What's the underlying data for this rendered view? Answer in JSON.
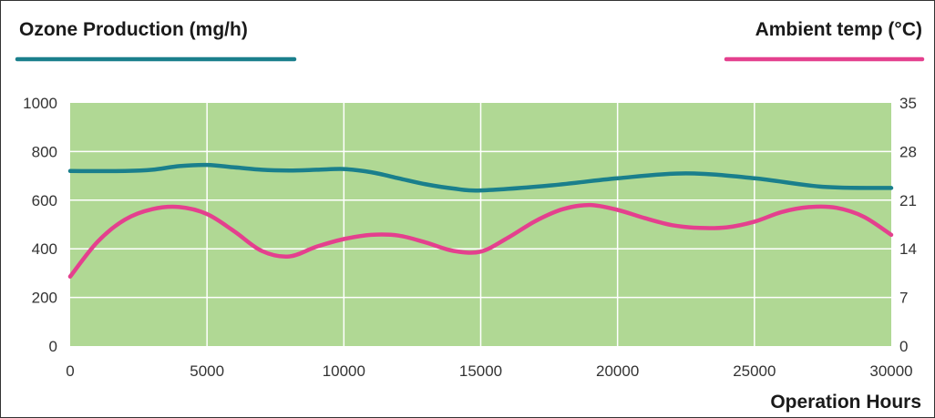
{
  "chart_data": {
    "type": "line",
    "xlabel": "Operation Hours",
    "x_ticks": [
      "0",
      "5000",
      "10000",
      "15000",
      "20000",
      "25000",
      "30000"
    ],
    "xlim": [
      0,
      30000
    ],
    "y_left_label": "Ozone Production (mg/h)",
    "y_left_ticks": [
      "0",
      "200",
      "400",
      "600",
      "800",
      "1000"
    ],
    "y_left_lim": [
      0,
      1000
    ],
    "y_right_label": "Ambient temp (°C)",
    "y_right_ticks": [
      "0",
      "7",
      "14",
      "21",
      "28",
      "35"
    ],
    "y_right_lim": [
      0,
      35
    ],
    "grid": true,
    "plot_background": "#b0d894",
    "series": [
      {
        "name": "Ozone Production (mg/h)",
        "axis": "left",
        "color": "#1a7f8c",
        "x": [
          0,
          2000,
          3000,
          4000,
          5000,
          6000,
          7000,
          8000,
          9000,
          10000,
          11000,
          12000,
          13000,
          14000,
          15000,
          17500,
          20000,
          22500,
          25000,
          27500,
          30000
        ],
        "y": [
          720,
          720,
          725,
          740,
          745,
          735,
          725,
          722,
          725,
          728,
          715,
          690,
          665,
          648,
          640,
          660,
          690,
          710,
          690,
          655,
          650
        ]
      },
      {
        "name": "Ambient temp (°C)",
        "axis": "right",
        "color": "#e4408e",
        "x": [
          0,
          1000,
          2000,
          3000,
          4000,
          5000,
          6000,
          7000,
          8000,
          9000,
          10000,
          11000,
          12000,
          13000,
          14000,
          15000,
          16000,
          17000,
          18000,
          19000,
          20000,
          21000,
          22000,
          23000,
          24000,
          25000,
          26000,
          27000,
          28000,
          29000,
          30000
        ],
        "y": [
          10,
          15,
          18.2,
          19.7,
          20,
          19,
          16.5,
          13.7,
          12.9,
          14.3,
          15.4,
          16,
          15.9,
          14.9,
          13.7,
          13.6,
          15.6,
          18,
          19.7,
          20.3,
          19.6,
          18.4,
          17.4,
          17,
          17.1,
          17.9,
          19.3,
          20,
          19.9,
          18.6,
          16
        ]
      }
    ]
  }
}
